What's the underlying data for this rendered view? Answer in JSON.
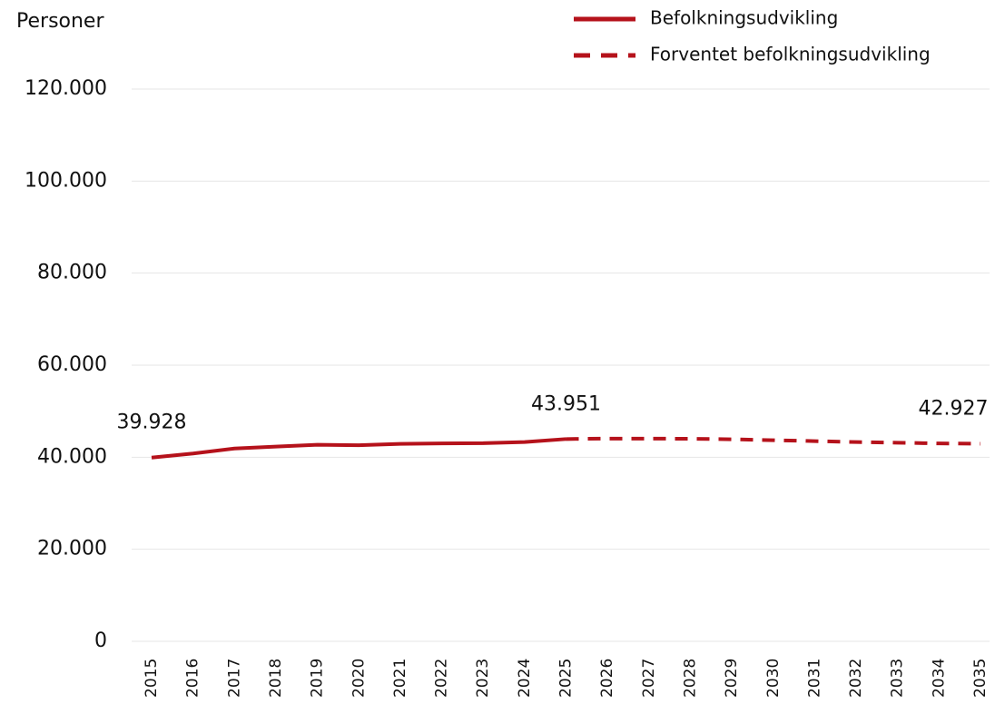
{
  "chart_data": {
    "type": "line",
    "y_label": "Personer",
    "categories": [
      "2015",
      "2016",
      "2017",
      "2018",
      "2019",
      "2020",
      "2021",
      "2022",
      "2023",
      "2024",
      "2025",
      "2026",
      "2027",
      "2028",
      "2029",
      "2030",
      "2031",
      "2032",
      "2033",
      "2034",
      "2035"
    ],
    "series": [
      {
        "name": "Befolkningsudvikling",
        "color": "#b5121b",
        "dashed": false,
        "values": [
          39928,
          40800,
          41900,
          42300,
          42700,
          42600,
          42900,
          43000,
          43050,
          43300,
          43951,
          null,
          null,
          null,
          null,
          null,
          null,
          null,
          null,
          null,
          null
        ],
        "value_labels": [
          "39.928",
          null,
          null,
          null,
          null,
          null,
          null,
          null,
          null,
          null,
          "43.951",
          null,
          null,
          null,
          null,
          null,
          null,
          null,
          null,
          null,
          null
        ]
      },
      {
        "name": "Forventet befolkningsudvikling",
        "color": "#b5121b",
        "dashed": true,
        "values": [
          null,
          null,
          null,
          null,
          null,
          null,
          null,
          null,
          null,
          null,
          43951,
          44050,
          44050,
          44000,
          43900,
          43700,
          43500,
          43300,
          43150,
          43000,
          42927
        ],
        "value_labels": [
          null,
          null,
          null,
          null,
          null,
          null,
          null,
          null,
          null,
          null,
          null,
          null,
          null,
          null,
          null,
          null,
          null,
          null,
          null,
          null,
          "42.927"
        ]
      }
    ],
    "ylim": [
      0,
      120000
    ],
    "yticks": [
      0,
      {
        "value": 20000,
        "label": "20.000"
      },
      {
        "value": 40000,
        "label": "40.000"
      },
      {
        "value": 60000,
        "label": "60.000"
      },
      {
        "value": 80000,
        "label": "80.000"
      },
      {
        "value": 100000,
        "label": "100.000"
      },
      {
        "value": 120000,
        "label": "120.000"
      }
    ],
    "grid": true,
    "legend": "top-right"
  }
}
